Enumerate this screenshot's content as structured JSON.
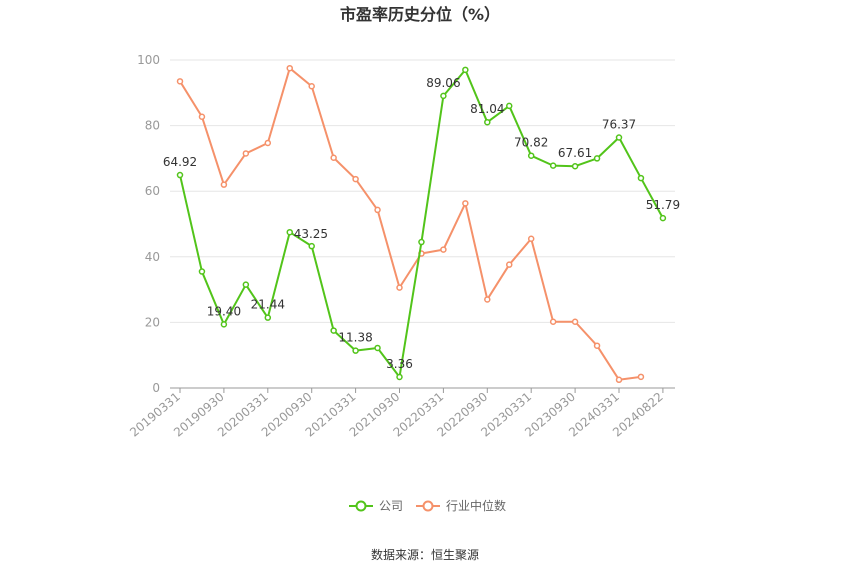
{
  "chart_data": {
    "type": "line",
    "title": "市盈率历史分位（%）",
    "xlabel": "",
    "ylabel": "",
    "ylim": [
      0,
      100
    ],
    "yticks": [
      0,
      20,
      40,
      60,
      80,
      100
    ],
    "x": [
      "20190331",
      "20190630",
      "20190930",
      "20191231",
      "20200331",
      "20200630",
      "20200930",
      "20201231",
      "20210331",
      "20210630",
      "20210930",
      "20211231",
      "20220331",
      "20220630",
      "20220930",
      "20221231",
      "20230331",
      "20230630",
      "20230930",
      "20231231",
      "20240331",
      "20240630",
      "20240822"
    ],
    "xtick_labels": [
      "20190331",
      "20190930",
      "20200331",
      "20200930",
      "20210331",
      "20210930",
      "20220331",
      "20220930",
      "20230331",
      "20230930",
      "20240331",
      "20240822"
    ],
    "grid": "horizontal",
    "legend_position": "bottom-center",
    "series": [
      {
        "name": "公司",
        "color": "#52c41a",
        "values": [
          64.92,
          35.5,
          19.4,
          31.5,
          21.44,
          47.5,
          43.25,
          17.5,
          11.38,
          12.2,
          3.36,
          44.5,
          89.06,
          97.0,
          81.04,
          86.0,
          70.82,
          67.8,
          67.61,
          70.0,
          76.37,
          64.0,
          51.79
        ],
        "labels": {
          "0": "64.92",
          "2": "19.40",
          "4": "21.44",
          "6": "43.25",
          "8": "11.38",
          "10": "3.36",
          "12": "89.06",
          "14": "81.04",
          "16": "70.82",
          "18": "67.61",
          "20": "76.37",
          "22": "51.79"
        }
      },
      {
        "name": "行业中位数",
        "color": "#f5916a",
        "values": [
          93.5,
          82.7,
          62.0,
          71.5,
          74.7,
          97.5,
          92.0,
          70.2,
          63.7,
          54.3,
          30.6,
          41.0,
          42.2,
          56.3,
          27.0,
          37.6,
          45.5,
          20.2,
          20.2,
          12.9,
          2.5,
          3.4,
          null
        ]
      }
    ],
    "source": "数据来源：恒生聚源"
  }
}
